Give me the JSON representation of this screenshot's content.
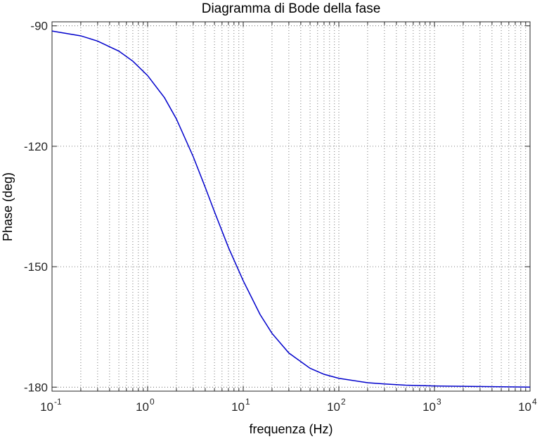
{
  "chart_data": {
    "type": "line",
    "title": "Diagramma di Bode della fase",
    "xlabel": "frequenza  (Hz)",
    "ylabel": "Phase (deg)",
    "xscale": "log",
    "xlim": [
      0.1,
      10000
    ],
    "ylim": [
      -181,
      -89
    ],
    "grid": true,
    "x_ticks": [
      {
        "base": "10",
        "exp": "-1"
      },
      {
        "base": "10",
        "exp": "0"
      },
      {
        "base": "10",
        "exp": "1"
      },
      {
        "base": "10",
        "exp": "2"
      },
      {
        "base": "10",
        "exp": "3"
      },
      {
        "base": "10",
        "exp": "4"
      }
    ],
    "y_ticks": [
      "-90",
      "-120",
      "-150",
      "-180"
    ],
    "y_tick_values": [
      -90,
      -120,
      -150,
      -180
    ],
    "line_color": "#0000cc",
    "series": [
      {
        "x": [
          0.1,
          0.2,
          0.3,
          0.5,
          0.7,
          1,
          1.5,
          2,
          3,
          4,
          5,
          7,
          10,
          15,
          20,
          30,
          50,
          70,
          100,
          200,
          300,
          500,
          1000,
          2000,
          5000,
          10000
        ],
        "values": [
          -91.3,
          -92.5,
          -93.8,
          -96.3,
          -98.8,
          -102.4,
          -107.9,
          -113.2,
          -122.6,
          -130.2,
          -136.3,
          -145.2,
          -153.5,
          -161.9,
          -166.6,
          -171.5,
          -175.3,
          -176.8,
          -177.8,
          -178.9,
          -179.2,
          -179.5,
          -179.7,
          -179.8,
          -179.9,
          -180.0
        ]
      }
    ]
  }
}
